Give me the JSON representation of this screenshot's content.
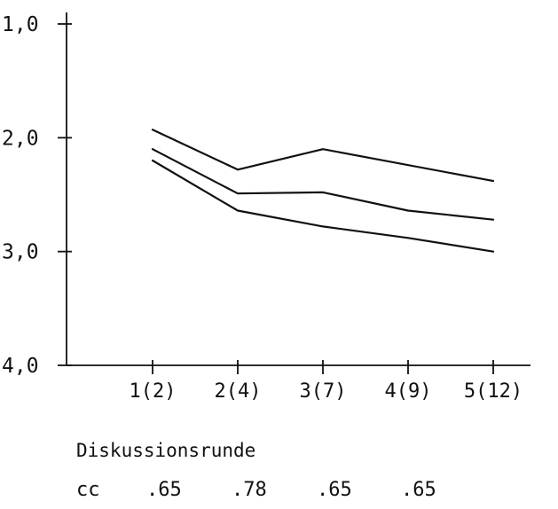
{
  "chart_data": {
    "type": "line",
    "title": "",
    "xlabel": "Diskussionsrunde",
    "ylabel": "",
    "categories": [
      "1(2)",
      "2(4)",
      "3(7)",
      "4(9)",
      "5(12)"
    ],
    "y_ticks": [
      "1,0",
      "2,0",
      "3,0",
      "4,0"
    ],
    "y_tick_values": [
      1.0,
      2.0,
      3.0,
      4.0
    ],
    "ylim": [
      4.0,
      1.0
    ],
    "y_inverted": true,
    "grid": false,
    "legend": "none",
    "series": [
      {
        "values": [
          1.93,
          2.28,
          2.1,
          null,
          2.38
        ]
      },
      {
        "values": [
          2.1,
          2.49,
          2.48,
          2.64,
          2.72
        ]
      },
      {
        "values": [
          2.2,
          2.64,
          2.78,
          2.88,
          3.0
        ]
      }
    ],
    "cc": {
      "label": "cc",
      "values": [
        ".65",
        ".78",
        ".65",
        ".65"
      ]
    }
  }
}
